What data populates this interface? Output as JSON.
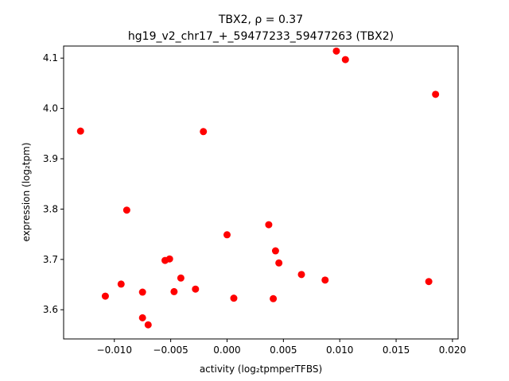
{
  "chart_data": {
    "type": "scatter",
    "title_line1": "TBX2, ρ = 0.37",
    "title_line2": "hg19_v2_chr17_+_59477233_59477263 (TBX2)",
    "xlabel": "activity (log₂tpmperTFBS)",
    "ylabel": "expression (log₂tpm)",
    "xlim": [
      -0.0145,
      0.0205
    ],
    "ylim": [
      3.542,
      4.124
    ],
    "xticks": [
      -0.01,
      -0.005,
      0.0,
      0.005,
      0.01,
      0.015,
      0.02
    ],
    "xtick_labels": [
      "−0.010",
      "−0.005",
      "0.000",
      "0.005",
      "0.010",
      "0.015",
      "0.020"
    ],
    "yticks": [
      3.6,
      3.7,
      3.8,
      3.9,
      4.0,
      4.1
    ],
    "ytick_labels": [
      "3.6",
      "3.7",
      "3.8",
      "3.9",
      "4.0",
      "4.1"
    ],
    "grid": false,
    "point_color": "#ff0000",
    "points": [
      {
        "x": -0.013,
        "y": 3.955
      },
      {
        "x": -0.0108,
        "y": 3.627
      },
      {
        "x": -0.0094,
        "y": 3.651
      },
      {
        "x": -0.0089,
        "y": 3.798
      },
      {
        "x": -0.0075,
        "y": 3.635
      },
      {
        "x": -0.0075,
        "y": 3.584
      },
      {
        "x": -0.007,
        "y": 3.57
      },
      {
        "x": -0.0055,
        "y": 3.698
      },
      {
        "x": -0.0051,
        "y": 3.701
      },
      {
        "x": -0.0047,
        "y": 3.636
      },
      {
        "x": -0.0041,
        "y": 3.663
      },
      {
        "x": -0.0028,
        "y": 3.641
      },
      {
        "x": -0.0021,
        "y": 3.954
      },
      {
        "x": 0.0,
        "y": 3.749
      },
      {
        "x": 0.0006,
        "y": 3.623
      },
      {
        "x": 0.0037,
        "y": 3.769
      },
      {
        "x": 0.0041,
        "y": 3.622
      },
      {
        "x": 0.0043,
        "y": 3.717
      },
      {
        "x": 0.0046,
        "y": 3.693
      },
      {
        "x": 0.0066,
        "y": 3.67
      },
      {
        "x": 0.0087,
        "y": 3.659
      },
      {
        "x": 0.0097,
        "y": 4.114
      },
      {
        "x": 0.0105,
        "y": 4.097
      },
      {
        "x": 0.0179,
        "y": 3.656
      },
      {
        "x": 0.0185,
        "y": 4.028
      }
    ]
  }
}
